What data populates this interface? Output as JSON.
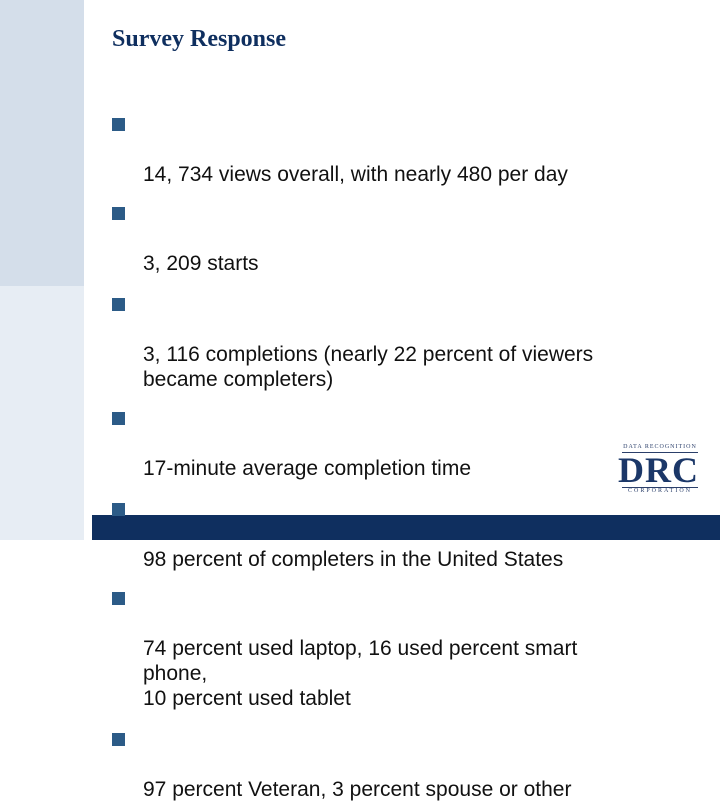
{
  "slide": {
    "title": "Survey Response",
    "bullets": [
      "14, 734 views overall, with nearly 480 per day",
      "3, 209 starts",
      "3, 116 completions (nearly 22 percent of viewers\nbecame completers)",
      "17-minute average completion time",
      "98 percent of completers in the United States",
      "74 percent used laptop, 16 used percent smart\nphone,\n10 percent used tablet",
      "97 percent Veteran,  3 percent  spouse or other"
    ]
  },
  "logo": {
    "top_text": "DATA RECOGNITION",
    "main_text": "DRC",
    "bottom_text": "CORPORATION"
  },
  "colors": {
    "title": "#0f2f5f",
    "bullet_marker": "#2c5b87",
    "left_band_top": "#d4deea",
    "left_band_bottom": "#e7edf4",
    "footer_bar": "#0f2f5f"
  }
}
